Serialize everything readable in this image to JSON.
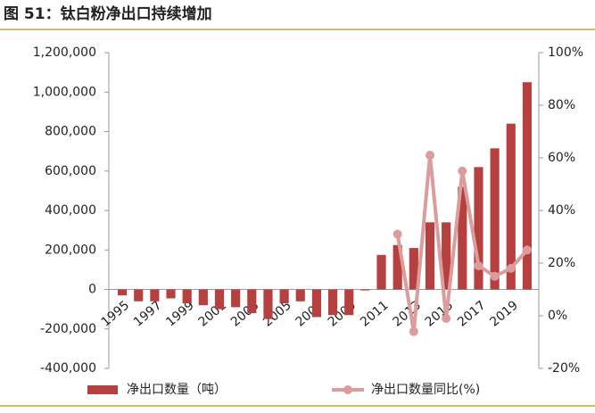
{
  "chart_data": {
    "type": "bar-line",
    "title": "图 51：钛白粉净出口持续增加",
    "categories": [
      "1995",
      null,
      "1997",
      null,
      "1999",
      null,
      "2001",
      null,
      "2003",
      null,
      "2005",
      null,
      "2007",
      null,
      "2009",
      null,
      "2011",
      null,
      "2013",
      null,
      "2015",
      null,
      "2017",
      null,
      "2019",
      null
    ],
    "series": [
      {
        "name": "净出口数量（吨）",
        "type": "bar",
        "color": "#b5403f",
        "values": [
          -30000,
          -60000,
          -60000,
          -45000,
          -70000,
          -80000,
          -100000,
          -90000,
          -120000,
          -150000,
          -70000,
          -60000,
          -140000,
          -130000,
          -130000,
          -5000,
          175000,
          225000,
          210000,
          340000,
          340000,
          520000,
          620000,
          715000,
          840000,
          1050000
        ]
      },
      {
        "name": "净出口数量同比(%)",
        "type": "line",
        "axis": "y2",
        "color": "#dc9c9c",
        "values": [
          null,
          null,
          null,
          null,
          null,
          null,
          null,
          null,
          null,
          null,
          null,
          null,
          null,
          null,
          null,
          null,
          null,
          31,
          -6,
          61,
          -1,
          55,
          19,
          15,
          18,
          25
        ]
      }
    ],
    "ylim": [
      -400000,
      1200000
    ],
    "yticks": [
      {
        "value": -400000,
        "label": "-400,000"
      },
      {
        "value": -200000,
        "label": "-200,000"
      },
      0,
      {
        "value": 200000,
        "label": "200,000"
      },
      {
        "value": 400000,
        "label": "400,000"
      },
      {
        "value": 600000,
        "label": "600,000"
      },
      {
        "value": 800000,
        "label": "800,000"
      },
      {
        "value": 1000000,
        "label": "1,000,000"
      },
      {
        "value": 1200000,
        "label": "1,200,000"
      }
    ],
    "y2lim": [
      -20,
      100
    ],
    "y2ticks": [
      {
        "value": -20,
        "label": "-20%"
      },
      {
        "value": 0,
        "label": "0%"
      },
      {
        "value": 20,
        "label": "20%"
      },
      {
        "value": 40,
        "label": "40%"
      },
      {
        "value": 60,
        "label": "60%"
      },
      {
        "value": 80,
        "label": "80%"
      },
      {
        "value": 100,
        "label": "100%"
      }
    ]
  }
}
